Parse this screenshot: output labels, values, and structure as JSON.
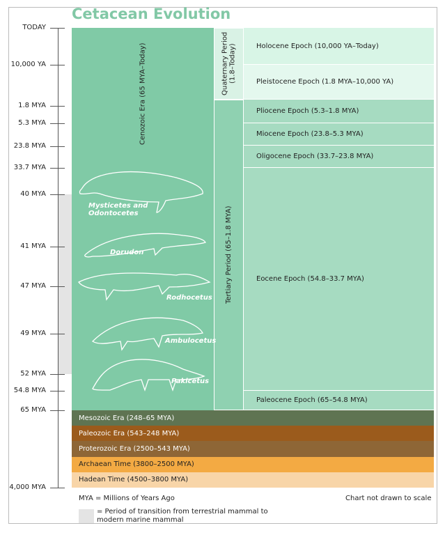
{
  "title": "Cetacean Evolution",
  "time_labels": [
    "TODAY",
    "10,000 YA",
    "1.8 MYA",
    "5.3 MYA",
    "23.8 MYA",
    "33.7 MYA",
    "40 MYA",
    "41 MYA",
    "47 MYA",
    "49 MYA",
    "52 MYA",
    "54.8 MYA",
    "65 MYA",
    "4,000 MYA"
  ],
  "era": "Cenozoic Era (65 MYA–Today)",
  "periods": [
    "Quaternary Period (1.8–Today)",
    "Tertiary Period (65–1.8 MYA)"
  ],
  "epochs": [
    "Holocene Epoch (10,000 YA–Today)",
    "Pleistocene Epoch (1.8 MYA–10,000 YA)",
    "Pliocene Epoch (5.3–1.8 MYA)",
    "Miocene Epoch (23.8–5.3 MYA)",
    "Oligocene Epoch (33.7–23.8 MYA)",
    "Eocene Epoch (54.8–33.7 MYA)",
    "Paleocene Epoch (65–54.8 MYA)"
  ],
  "animals": [
    "Mysticetes and Odontocetes",
    "Dorudon",
    "Rodhocetus",
    "Ambulocetus",
    "Pakicetus"
  ],
  "older_eras": [
    "Mesozoic Era (248–65 MYA)",
    "Paleozoic Era (543–248 MYA)",
    "Proterozoic Era (2500–543 MYA)",
    "Archaean Time (3800–2500 MYA)",
    "Hadean Time (4500–3800 MYA)"
  ],
  "notes": {
    "mya": "MYA = Millions of Years Ago",
    "scale": "Chart not drawn to scale",
    "transition": "= Period of transition from terrestrial mammal to modern marine mammal"
  }
}
